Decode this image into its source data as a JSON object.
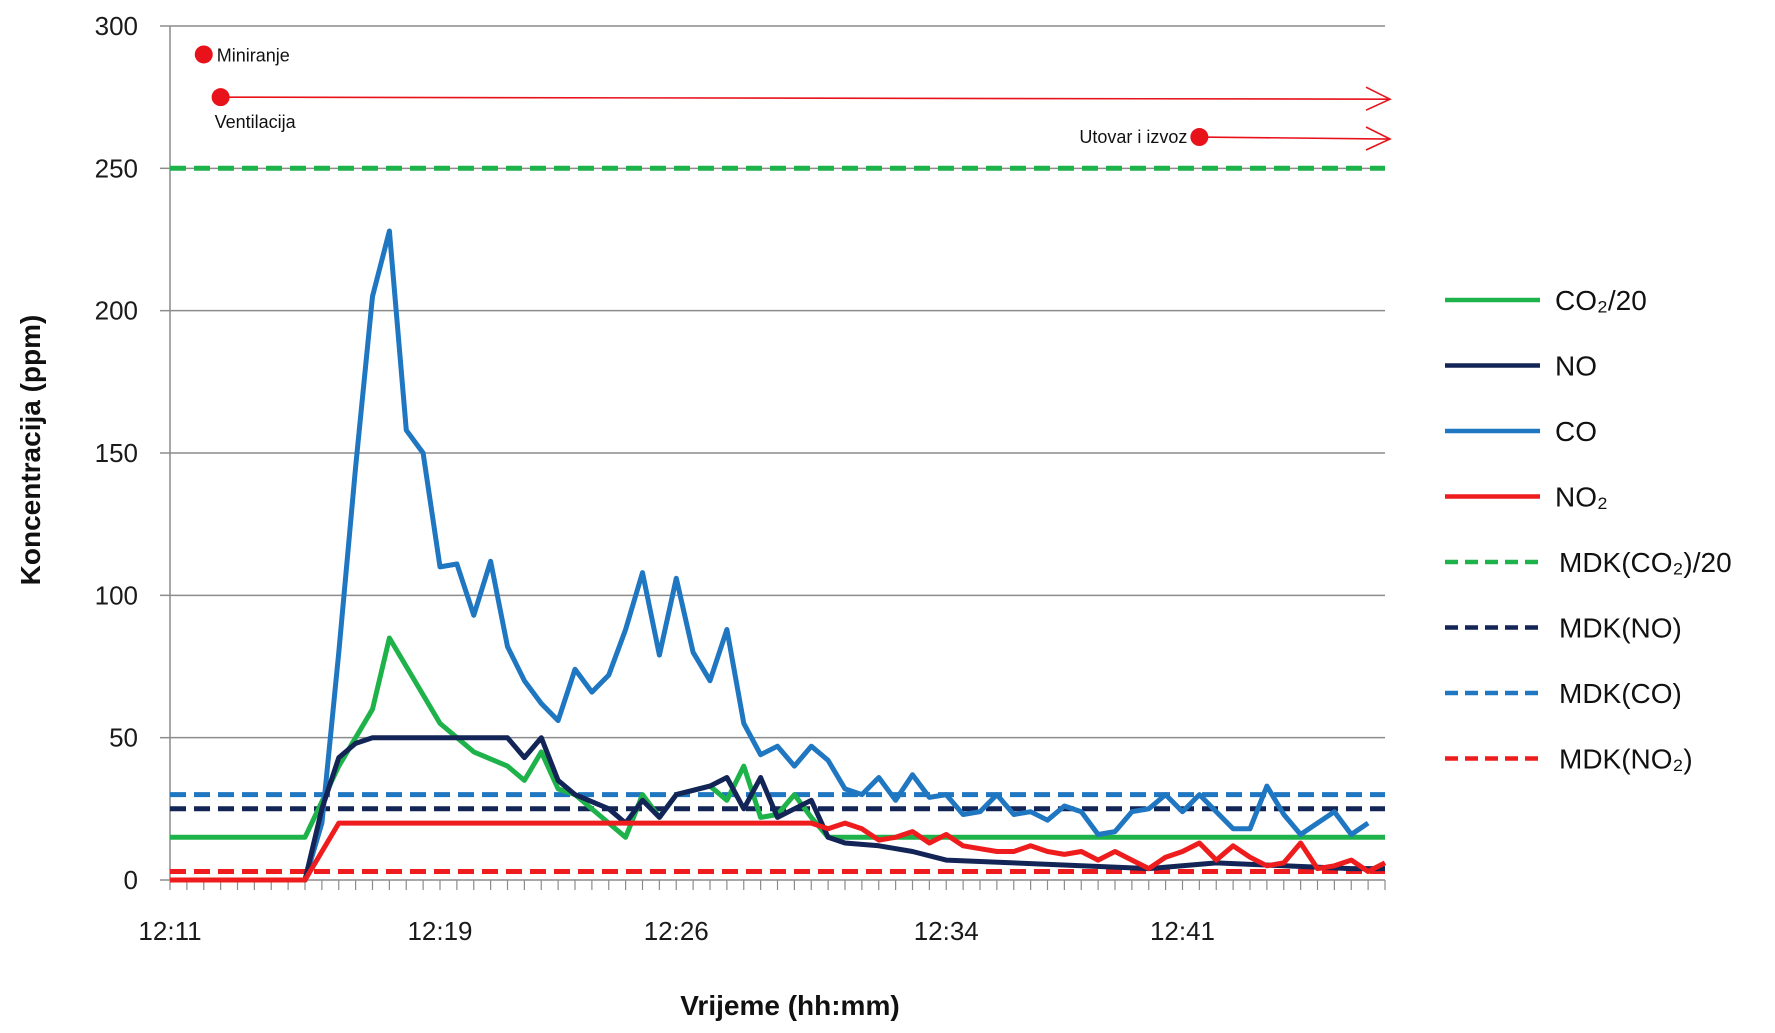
{
  "chart_data": {
    "type": "line",
    "title": "",
    "xlabel": "Vrijeme (hh:mm)",
    "ylabel": "Koncentracija (ppm)",
    "ylim": [
      0,
      300
    ],
    "yticks": [
      0,
      50,
      100,
      150,
      200,
      250,
      300
    ],
    "xticks": [
      "12:11",
      "12:19",
      "12:26",
      "12:34",
      "12:41"
    ],
    "grid": "horizontal",
    "legend_position": "right",
    "series": [
      {
        "name": "CO2/20",
        "label": "CO₂/20",
        "color": "#1eb24a",
        "dash": "solid",
        "points": [
          [
            "12:11",
            15
          ],
          [
            "12:15",
            15
          ],
          [
            "12:16",
            40
          ],
          [
            "12:17",
            60
          ],
          [
            "12:17:30",
            85
          ],
          [
            "12:18",
            75
          ],
          [
            "12:19",
            55
          ],
          [
            "12:20",
            45
          ],
          [
            "12:21",
            40
          ],
          [
            "12:21:30",
            35
          ],
          [
            "12:22",
            45
          ],
          [
            "12:22:30",
            32
          ],
          [
            "12:23",
            30
          ],
          [
            "12:24",
            20
          ],
          [
            "12:24:30",
            15
          ],
          [
            "12:25",
            30
          ],
          [
            "12:25:30",
            22
          ],
          [
            "12:26",
            30
          ],
          [
            "12:27",
            33
          ],
          [
            "12:27:30",
            28
          ],
          [
            "12:28",
            40
          ],
          [
            "12:28:30",
            22
          ],
          [
            "12:29",
            23
          ],
          [
            "12:29:30",
            30
          ],
          [
            "12:30",
            22
          ],
          [
            "12:30:30",
            15
          ],
          [
            "12:33",
            15
          ],
          [
            "12:47",
            15
          ]
        ]
      },
      {
        "name": "NO",
        "label": "NO",
        "color": "#132457",
        "dash": "solid",
        "points": [
          [
            "12:11",
            0
          ],
          [
            "12:15",
            0
          ],
          [
            "12:15:30",
            25
          ],
          [
            "12:16",
            43
          ],
          [
            "12:16:30",
            48
          ],
          [
            "12:17",
            50
          ],
          [
            "12:19",
            50
          ],
          [
            "12:21",
            50
          ],
          [
            "12:21:30",
            43
          ],
          [
            "12:22",
            50
          ],
          [
            "12:22:30",
            35
          ],
          [
            "12:23",
            30
          ],
          [
            "12:24",
            25
          ],
          [
            "12:24:30",
            20
          ],
          [
            "12:25",
            28
          ],
          [
            "12:25:30",
            22
          ],
          [
            "12:26",
            30
          ],
          [
            "12:27",
            33
          ],
          [
            "12:27:30",
            36
          ],
          [
            "12:28",
            25
          ],
          [
            "12:28:30",
            36
          ],
          [
            "12:29",
            22
          ],
          [
            "12:29:30",
            25
          ],
          [
            "12:30",
            28
          ],
          [
            "12:30:30",
            15
          ],
          [
            "12:31",
            13
          ],
          [
            "12:32",
            12
          ],
          [
            "12:33",
            10
          ],
          [
            "12:34",
            7
          ],
          [
            "12:36",
            6
          ],
          [
            "12:38",
            5
          ],
          [
            "12:40",
            4
          ],
          [
            "12:42",
            6
          ],
          [
            "12:44",
            5
          ],
          [
            "12:46",
            4
          ],
          [
            "12:47",
            4
          ]
        ]
      },
      {
        "name": "CO",
        "label": "CO",
        "color": "#1f76c1",
        "dash": "solid",
        "points": [
          [
            "12:11",
            0
          ],
          [
            "12:15",
            0
          ],
          [
            "12:15:30",
            20
          ],
          [
            "12:16",
            80
          ],
          [
            "12:16:30",
            145
          ],
          [
            "12:17",
            205
          ],
          [
            "12:17:30",
            228
          ],
          [
            "12:18",
            158
          ],
          [
            "12:18:30",
            150
          ],
          [
            "12:19",
            110
          ],
          [
            "12:19:30",
            111
          ],
          [
            "12:20",
            93
          ],
          [
            "12:20:30",
            112
          ],
          [
            "12:21",
            82
          ],
          [
            "12:21:30",
            70
          ],
          [
            "12:22",
            62
          ],
          [
            "12:22:30",
            56
          ],
          [
            "12:23",
            74
          ],
          [
            "12:23:30",
            66
          ],
          [
            "12:24",
            72
          ],
          [
            "12:24:30",
            88
          ],
          [
            "12:25",
            108
          ],
          [
            "12:25:30",
            79
          ],
          [
            "12:26",
            106
          ],
          [
            "12:26:30",
            80
          ],
          [
            "12:27",
            70
          ],
          [
            "12:27:30",
            88
          ],
          [
            "12:28",
            55
          ],
          [
            "12:28:30",
            44
          ],
          [
            "12:29",
            47
          ],
          [
            "12:29:30",
            40
          ],
          [
            "12:30",
            47
          ],
          [
            "12:30:30",
            42
          ],
          [
            "12:31",
            32
          ],
          [
            "12:31:30",
            30
          ],
          [
            "12:32",
            36
          ],
          [
            "12:32:30",
            28
          ],
          [
            "12:33",
            37
          ],
          [
            "12:33:30",
            29
          ],
          [
            "12:34",
            30
          ],
          [
            "12:34:30",
            23
          ],
          [
            "12:35",
            24
          ],
          [
            "12:35:30",
            30
          ],
          [
            "12:36",
            23
          ],
          [
            "12:36:30",
            24
          ],
          [
            "12:37",
            21
          ],
          [
            "12:37:30",
            26
          ],
          [
            "12:38",
            24
          ],
          [
            "12:38:30",
            16
          ],
          [
            "12:39",
            17
          ],
          [
            "12:39:30",
            24
          ],
          [
            "12:40",
            25
          ],
          [
            "12:40:30",
            30
          ],
          [
            "12:41",
            24
          ],
          [
            "12:41:30",
            30
          ],
          [
            "12:42",
            24
          ],
          [
            "12:42:30",
            18
          ],
          [
            "12:43",
            18
          ],
          [
            "12:43:30",
            33
          ],
          [
            "12:44",
            23
          ],
          [
            "12:44:30",
            16
          ],
          [
            "12:45",
            20
          ],
          [
            "12:45:30",
            24
          ],
          [
            "12:46",
            16
          ],
          [
            "12:46:30",
            20
          ]
        ]
      },
      {
        "name": "NO2",
        "label": "NO₂",
        "color": "#ee1c1c",
        "dash": "solid",
        "points": [
          [
            "12:11",
            0
          ],
          [
            "12:15",
            0
          ],
          [
            "12:16",
            20
          ],
          [
            "12:30",
            20
          ],
          [
            "12:30:30",
            18
          ],
          [
            "12:31",
            20
          ],
          [
            "12:31:30",
            18
          ],
          [
            "12:32",
            14
          ],
          [
            "12:32:30",
            15
          ],
          [
            "12:33",
            17
          ],
          [
            "12:33:30",
            13
          ],
          [
            "12:34",
            16
          ],
          [
            "12:34:30",
            12
          ],
          [
            "12:35",
            11
          ],
          [
            "12:35:30",
            10
          ],
          [
            "12:36",
            10
          ],
          [
            "12:36:30",
            12
          ],
          [
            "12:37",
            10
          ],
          [
            "12:37:30",
            9
          ],
          [
            "12:38",
            10
          ],
          [
            "12:38:30",
            7
          ],
          [
            "12:39",
            10
          ],
          [
            "12:39:30",
            7
          ],
          [
            "12:40",
            4
          ],
          [
            "12:40:30",
            8
          ],
          [
            "12:41",
            10
          ],
          [
            "12:41:30",
            13
          ],
          [
            "12:42",
            7
          ],
          [
            "12:42:30",
            12
          ],
          [
            "12:43",
            8
          ],
          [
            "12:43:30",
            5
          ],
          [
            "12:44",
            6
          ],
          [
            "12:44:30",
            13
          ],
          [
            "12:45",
            4
          ],
          [
            "12:45:30",
            5
          ],
          [
            "12:46",
            7
          ],
          [
            "12:46:30",
            3
          ],
          [
            "12:47",
            6
          ]
        ]
      },
      {
        "name": "MDK(CO2)/20",
        "label": "MDK(CO₂)/20",
        "color": "#1eb24a",
        "dash": "dashed",
        "points": [
          [
            "12:11",
            250
          ],
          [
            "12:47",
            250
          ]
        ]
      },
      {
        "name": "MDK(NO)",
        "label": "MDK(NO)",
        "color": "#132457",
        "dash": "dashed",
        "points": [
          [
            "12:11",
            25
          ],
          [
            "12:47",
            25
          ]
        ]
      },
      {
        "name": "MDK(CO)",
        "label": "MDK(CO)",
        "color": "#1f76c1",
        "dash": "dashed",
        "points": [
          [
            "12:11",
            30
          ],
          [
            "12:47",
            30
          ]
        ]
      },
      {
        "name": "MDK(NO2)",
        "label": "MDK(NO₂)",
        "color": "#ee1c1c",
        "dash": "dashed",
        "points": [
          [
            "12:11",
            3
          ],
          [
            "12:47",
            3
          ]
        ]
      }
    ],
    "annotations": [
      {
        "text": "Miniranje",
        "time": "12:12",
        "y": 290,
        "arrow": false,
        "color": "#e8121a"
      },
      {
        "text": "Ventilacija",
        "time": "12:12:30",
        "y": 275,
        "arrow_to_time": "12:47",
        "arrow": true,
        "color": "#e8121a"
      },
      {
        "text": "Utovar i izvoz",
        "time": "12:41:30",
        "y": 261,
        "arrow_to_time": "12:47",
        "arrow": true,
        "color": "#e8121a"
      }
    ]
  }
}
